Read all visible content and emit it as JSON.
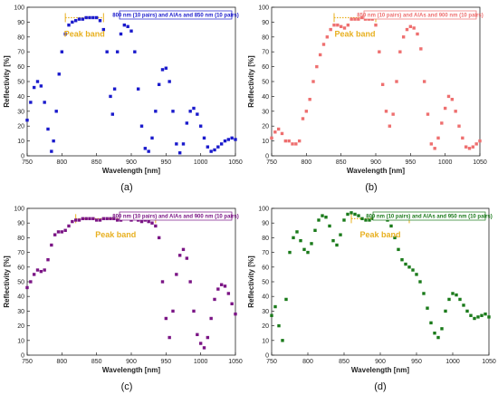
{
  "chart_data": [
    {
      "type": "scatter",
      "caption": "(a)",
      "legend": "800 nm (10 pairs) and AlAs and 850 nm (10 pairs)",
      "color": "#1a1acc",
      "xlabel": "Wavelength [nm]",
      "ylabel": "Reflectivity [%]",
      "xlim": [
        750,
        1050
      ],
      "ylim": [
        0,
        100
      ],
      "xticks": [
        750,
        800,
        850,
        900,
        950,
        1000,
        1050
      ],
      "yticks": [
        0,
        10,
        20,
        30,
        40,
        50,
        60,
        70,
        80,
        90,
        100
      ],
      "annotation": "Peak band",
      "peak_band": [
        805,
        860
      ],
      "x": [
        750,
        755,
        760,
        765,
        770,
        775,
        780,
        785,
        788,
        792,
        796,
        800,
        805,
        810,
        815,
        820,
        825,
        830,
        835,
        840,
        845,
        850,
        855,
        860,
        865,
        870,
        873,
        876,
        880,
        885,
        890,
        895,
        900,
        905,
        910,
        915,
        920,
        925,
        930,
        935,
        940,
        945,
        950,
        955,
        960,
        965,
        970,
        975,
        980,
        985,
        990,
        995,
        1000,
        1005,
        1010,
        1015,
        1020,
        1025,
        1030,
        1035,
        1040,
        1045,
        1050
      ],
      "y": [
        24,
        36,
        46,
        50,
        47,
        36,
        18,
        3,
        10,
        30,
        55,
        70,
        82,
        88,
        90,
        91,
        92,
        92,
        93,
        93,
        93,
        93,
        91,
        85,
        70,
        40,
        28,
        45,
        70,
        82,
        88,
        87,
        84,
        70,
        45,
        20,
        5,
        3,
        12,
        30,
        48,
        58,
        59,
        50,
        30,
        8,
        2,
        8,
        22,
        30,
        32,
        28,
        20,
        12,
        6,
        3,
        4,
        6,
        8,
        10,
        11,
        12,
        11
      ]
    },
    {
      "type": "scatter",
      "caption": "(b)",
      "legend": "850 nm (10 pairs) and AlAs and 900 nm (10 pairs)",
      "color": "#ee6f6f",
      "xlabel": "Wavelength [nm]",
      "ylabel": "Reflectivity [%]",
      "xlim": [
        750,
        1050
      ],
      "ylim": [
        0,
        100
      ],
      "xticks": [
        750,
        800,
        850,
        900,
        950,
        1000,
        1050
      ],
      "yticks": [
        0,
        10,
        20,
        30,
        40,
        50,
        60,
        70,
        80,
        90,
        100
      ],
      "annotation": "Peak band",
      "peak_band": [
        840,
        900
      ],
      "x": [
        750,
        755,
        760,
        765,
        770,
        775,
        780,
        785,
        790,
        795,
        800,
        805,
        810,
        815,
        820,
        825,
        830,
        835,
        840,
        845,
        850,
        855,
        860,
        865,
        870,
        875,
        880,
        885,
        890,
        895,
        900,
        905,
        910,
        915,
        920,
        925,
        930,
        935,
        940,
        945,
        950,
        955,
        960,
        965,
        970,
        975,
        980,
        985,
        990,
        995,
        1000,
        1005,
        1010,
        1015,
        1020,
        1025,
        1030,
        1035,
        1040,
        1045,
        1050
      ],
      "y": [
        12,
        16,
        18,
        15,
        10,
        10,
        8,
        8,
        10,
        25,
        30,
        38,
        50,
        60,
        68,
        75,
        80,
        85,
        88,
        88,
        87,
        86,
        88,
        92,
        92,
        92,
        93,
        92,
        92,
        92,
        88,
        70,
        48,
        30,
        20,
        28,
        50,
        70,
        80,
        85,
        87,
        86,
        82,
        72,
        50,
        28,
        8,
        5,
        12,
        22,
        32,
        40,
        38,
        30,
        20,
        12,
        6,
        5,
        6,
        8,
        10
      ]
    },
    {
      "type": "scatter",
      "caption": "(c)",
      "legend": "800 nm (10 pairs) and AlAs and 900 nm (10 pairs)",
      "color": "#7b1585",
      "xlabel": "Wavelength [nm]",
      "ylabel": "Reflectivity [%]",
      "xlim": [
        750,
        1050
      ],
      "ylim": [
        0,
        100
      ],
      "xticks": [
        750,
        800,
        850,
        900,
        950,
        1000,
        1050
      ],
      "yticks": [
        0,
        10,
        20,
        30,
        40,
        50,
        60,
        70,
        80,
        90,
        100
      ],
      "annotation": "Peak band",
      "peak_band": [
        820,
        935
      ],
      "x": [
        750,
        755,
        760,
        765,
        770,
        775,
        780,
        785,
        790,
        795,
        800,
        805,
        810,
        815,
        820,
        825,
        830,
        835,
        840,
        845,
        850,
        855,
        860,
        865,
        870,
        875,
        880,
        885,
        890,
        895,
        900,
        905,
        910,
        915,
        920,
        925,
        930,
        935,
        940,
        945,
        950,
        955,
        960,
        965,
        970,
        975,
        980,
        985,
        990,
        995,
        1000,
        1005,
        1010,
        1015,
        1020,
        1025,
        1030,
        1035,
        1040,
        1045,
        1050
      ],
      "y": [
        46,
        50,
        55,
        58,
        57,
        58,
        65,
        75,
        82,
        84,
        84,
        85,
        88,
        91,
        92,
        92,
        93,
        93,
        93,
        93,
        92,
        92,
        93,
        93,
        93,
        93,
        92,
        92,
        93,
        93,
        92,
        93,
        92,
        91,
        92,
        91,
        90,
        88,
        80,
        50,
        25,
        12,
        30,
        55,
        68,
        72,
        66,
        50,
        30,
        14,
        8,
        5,
        12,
        25,
        38,
        45,
        48,
        47,
        42,
        35,
        28
      ]
    },
    {
      "type": "scatter",
      "caption": "(d)",
      "legend": "800 nm (10 pairs) and AlAs and 950 nm (10 pairs)",
      "color": "#1a7a1a",
      "xlabel": "Wavelength [nm]",
      "ylabel": "Reflectivity [%]",
      "xlim": [
        750,
        1050
      ],
      "ylim": [
        0,
        100
      ],
      "xticks": [
        750,
        800,
        850,
        900,
        950,
        1000,
        1050
      ],
      "yticks": [
        0,
        10,
        20,
        30,
        40,
        50,
        60,
        70,
        80,
        90,
        100
      ],
      "annotation": "Peak band",
      "peak_band": [
        860,
        940
      ],
      "x": [
        750,
        755,
        760,
        765,
        770,
        775,
        780,
        785,
        790,
        795,
        800,
        805,
        810,
        815,
        820,
        825,
        830,
        835,
        840,
        845,
        850,
        855,
        860,
        865,
        870,
        875,
        880,
        885,
        890,
        895,
        900,
        905,
        910,
        915,
        920,
        925,
        930,
        935,
        940,
        945,
        950,
        955,
        960,
        965,
        970,
        975,
        980,
        985,
        990,
        995,
        1000,
        1005,
        1010,
        1015,
        1020,
        1025,
        1030,
        1035,
        1040,
        1045,
        1050
      ],
      "y": [
        27,
        33,
        20,
        10,
        38,
        70,
        80,
        84,
        78,
        72,
        70,
        76,
        85,
        92,
        95,
        94,
        88,
        78,
        75,
        82,
        92,
        96,
        97,
        96,
        95,
        93,
        92,
        92,
        93,
        95,
        95,
        94,
        92,
        88,
        80,
        72,
        65,
        62,
        60,
        58,
        55,
        50,
        42,
        32,
        22,
        15,
        12,
        18,
        30,
        38,
        42,
        41,
        38,
        34,
        30,
        27,
        25,
        26,
        27,
        28,
        26
      ]
    }
  ]
}
